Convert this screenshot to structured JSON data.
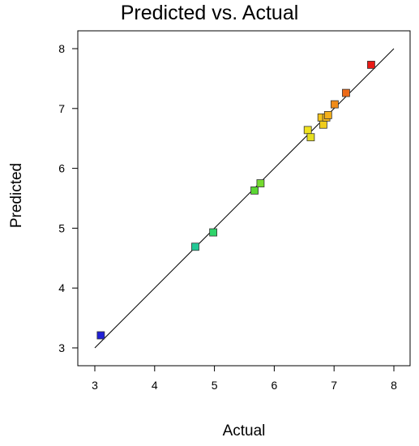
{
  "chart_data": {
    "type": "scatter",
    "title": "Predicted vs. Actual",
    "xlabel": "Actual",
    "ylabel": "Predicted",
    "xlim": [
      3,
      8
    ],
    "ylim": [
      3,
      8
    ],
    "xticks": [
      "3",
      "4",
      "5",
      "6",
      "7",
      "8"
    ],
    "yticks": [
      "3",
      "4",
      "5",
      "6",
      "7",
      "8"
    ],
    "grid": false,
    "reference_line": {
      "from": [
        3,
        3
      ],
      "to": [
        8,
        8
      ],
      "color": "#000000"
    },
    "color_scale": "blue-to-red by predicted value",
    "points": [
      {
        "x": 3.1,
        "y": 3.21,
        "color": "#1f1fd6"
      },
      {
        "x": 4.68,
        "y": 4.69,
        "color": "#22c895"
      },
      {
        "x": 4.98,
        "y": 4.93,
        "color": "#2fd46a"
      },
      {
        "x": 5.67,
        "y": 5.63,
        "color": "#5ad633"
      },
      {
        "x": 5.77,
        "y": 5.75,
        "color": "#74da2e"
      },
      {
        "x": 6.56,
        "y": 6.64,
        "color": "#f0e21f"
      },
      {
        "x": 6.61,
        "y": 6.52,
        "color": "#e6df1e"
      },
      {
        "x": 6.79,
        "y": 6.85,
        "color": "#f4c41c"
      },
      {
        "x": 6.82,
        "y": 6.73,
        "color": "#f0cc1c"
      },
      {
        "x": 6.87,
        "y": 6.85,
        "color": "#f4b81b"
      },
      {
        "x": 6.9,
        "y": 6.89,
        "color": "#f4b01b"
      },
      {
        "x": 7.01,
        "y": 7.07,
        "color": "#f08c1a"
      },
      {
        "x": 7.2,
        "y": 7.26,
        "color": "#ec6a18"
      },
      {
        "x": 7.62,
        "y": 7.73,
        "color": "#e81a16"
      }
    ]
  }
}
